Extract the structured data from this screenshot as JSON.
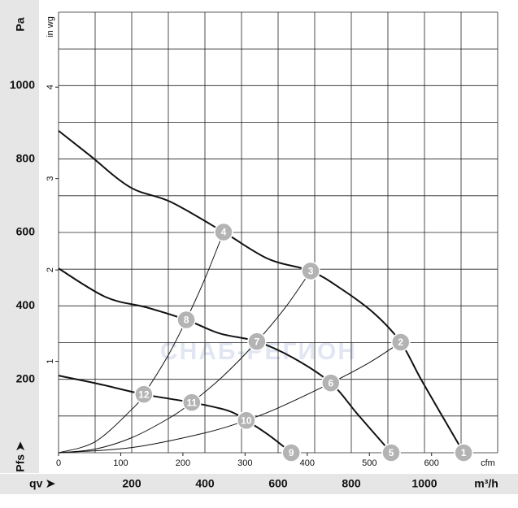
{
  "chart_data": {
    "type": "line",
    "x_label": "qv ➤",
    "x_unit": "m³/h",
    "x2_unit": "cfm",
    "y_label": "Pfs ➤",
    "y_unit": "Pa",
    "y2_unit": "in wg",
    "watermark": "СНАБ-РЕГИОН",
    "xlim": [
      0,
      1200
    ],
    "xticks": [
      200,
      400,
      600,
      800,
      1000
    ],
    "ylim": [
      0,
      1200
    ],
    "yticks": [
      200,
      400,
      600,
      800,
      1000
    ],
    "x2lim": [
      0,
      706.3
    ],
    "x2ticks": [
      0,
      100,
      200,
      300,
      400,
      500,
      600
    ],
    "y2lim": [
      0,
      4.82
    ],
    "y2ticks": [
      1,
      2,
      3,
      4
    ],
    "grid": {
      "x_every": 100,
      "y_every": 100
    },
    "series": [
      {
        "color": "#111111",
        "width": 2,
        "x": [
          0,
          84,
          196,
          307,
          451,
          573,
          689,
          773,
          862,
          935,
          995,
          1107
        ],
        "y": [
          877,
          811,
          723,
          683,
          601,
          528,
          495,
          446,
          380,
          301,
          192,
          0
        ]
      },
      {
        "color": "#111111",
        "width": 2,
        "x": [
          0,
          129,
          240,
          349,
          440,
          542,
          640,
          744,
          818,
          909
        ],
        "y": [
          502,
          424,
          396,
          362,
          325,
          303,
          259,
          190,
          104,
          0
        ]
      },
      {
        "color": "#111111",
        "width": 2,
        "x": [
          0,
          107,
          233,
          364,
          462,
          513,
          573,
          636
        ],
        "y": [
          210,
          188,
          159,
          137,
          115,
          88,
          49,
          0
        ]
      },
      {
        "color": "#111111",
        "width": 1,
        "x": [
          0,
          100,
          200,
          233,
          300,
          349,
          400,
          451
        ],
        "y": [
          0,
          30,
          118,
          159,
          266,
          362,
          474,
          601
        ]
      },
      {
        "color": "#111111",
        "width": 1,
        "x": [
          0,
          100,
          200,
          300,
          364,
          450,
          542,
          620,
          689
        ],
        "y": [
          0,
          10,
          41,
          93,
          137,
          209,
          303,
          396,
          495
        ]
      },
      {
        "color": "#111111",
        "width": 1,
        "x": [
          0,
          200,
          400,
          513,
          600,
          744,
          850,
          935
        ],
        "y": [
          0,
          14,
          54,
          88,
          122,
          190,
          246,
          301
        ]
      }
    ],
    "points": [
      {
        "label": "1",
        "x": 1107,
        "y": 0
      },
      {
        "label": "2",
        "x": 935,
        "y": 301
      },
      {
        "label": "3",
        "x": 689,
        "y": 495
      },
      {
        "label": "4",
        "x": 451,
        "y": 601
      },
      {
        "label": "5",
        "x": 909,
        "y": 0
      },
      {
        "label": "6",
        "x": 744,
        "y": 190
      },
      {
        "label": "7",
        "x": 542,
        "y": 303
      },
      {
        "label": "8",
        "x": 349,
        "y": 362
      },
      {
        "label": "9",
        "x": 636,
        "y": 0
      },
      {
        "label": "10",
        "x": 513,
        "y": 88
      },
      {
        "label": "11",
        "x": 364,
        "y": 137
      },
      {
        "label": "12",
        "x": 233,
        "y": 159
      }
    ],
    "point_color": "#b3b3b3"
  }
}
